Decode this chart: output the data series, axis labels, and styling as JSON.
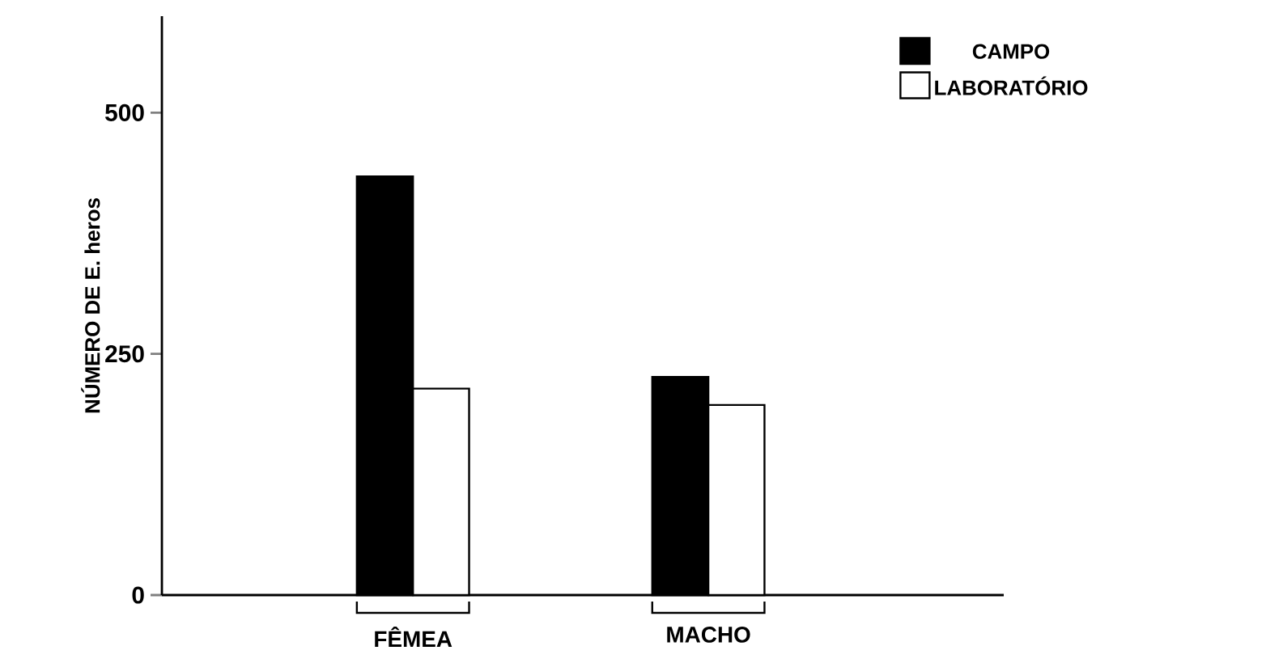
{
  "chart_data": {
    "type": "bar",
    "ylabel": "NÚMERO DE E. heros",
    "categories": [
      "FÊMEA",
      "MACHO"
    ],
    "series": [
      {
        "name": "CAMPO",
        "color": "#000000",
        "values": [
          434,
          226
        ]
      },
      {
        "name": "LABORATÓRIO",
        "color": "#ffffff",
        "values": [
          214,
          197
        ]
      }
    ],
    "ylim": [
      0,
      600
    ],
    "yticks": [
      0,
      250,
      500
    ],
    "legend": "top right"
  }
}
